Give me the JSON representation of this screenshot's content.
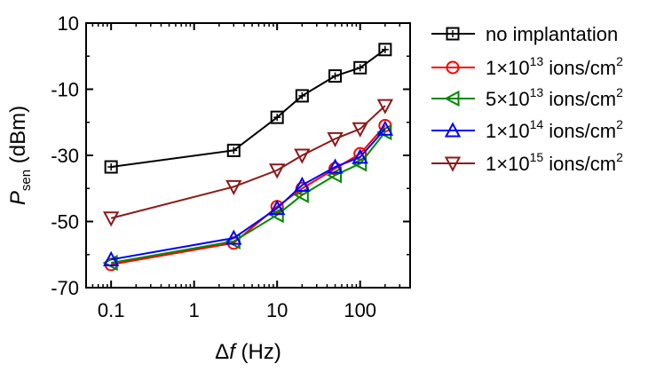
{
  "chart_data": {
    "type": "line",
    "xscale": "log",
    "xlim": [
      0.05,
      400
    ],
    "ylim": [
      -70,
      10
    ],
    "x_ticks": [
      {
        "value": 0.1,
        "label": "0.1"
      },
      {
        "value": 1,
        "label": "1"
      },
      {
        "value": 10,
        "label": "10"
      },
      {
        "value": 100,
        "label": "100"
      }
    ],
    "y_ticks": [
      {
        "value": 10,
        "label": "10"
      },
      {
        "value": -10,
        "label": "-10"
      },
      {
        "value": -30,
        "label": "-30"
      },
      {
        "value": -50,
        "label": "-50"
      },
      {
        "value": -70,
        "label": "-70"
      }
    ],
    "xlabel": {
      "prefix": "Δ",
      "var": "f",
      "rest": " (Hz)"
    },
    "ylabel": {
      "var": "P",
      "sub": "sen",
      "rest": " (dBm)"
    },
    "grid": false,
    "legend_position": "right",
    "x": [
      0.1,
      3,
      10,
      20,
      50,
      100,
      200
    ],
    "series": [
      {
        "name": "no implantation",
        "mantissa": "",
        "exponent": "",
        "unit_exp": "",
        "color": "#000000",
        "marker": "square",
        "values": [
          -33.5,
          -28.5,
          -18.5,
          -12,
          -6,
          -3.5,
          2
        ]
      },
      {
        "name": "ions/cm",
        "mantissa": "1×10",
        "exponent": "13",
        "unit_exp": "2",
        "color": "#ff0000",
        "marker": "circle",
        "values": [
          -63,
          -56.5,
          -45.5,
          -40,
          -34,
          -29.5,
          -21
        ]
      },
      {
        "name": "ions/cm",
        "mantissa": "5×10",
        "exponent": "13",
        "unit_exp": "2",
        "color": "#008800",
        "marker": "triangle-left",
        "values": [
          -62.5,
          -56,
          -48,
          -42,
          -36,
          -32.5,
          -23
        ]
      },
      {
        "name": "ions/cm",
        "mantissa": "1×10",
        "exponent": "14",
        "unit_exp": "2",
        "color": "#0000ff",
        "marker": "triangle-up",
        "values": [
          -61.5,
          -55,
          -46,
          -39,
          -33.5,
          -30.5,
          -22
        ]
      },
      {
        "name": "ions/cm",
        "mantissa": "1×10",
        "exponent": "15",
        "unit_exp": "2",
        "color": "#8b1a1a",
        "marker": "triangle-down",
        "values": [
          -49,
          -39.5,
          -34.5,
          -30,
          -25,
          -22,
          -15
        ]
      }
    ]
  }
}
